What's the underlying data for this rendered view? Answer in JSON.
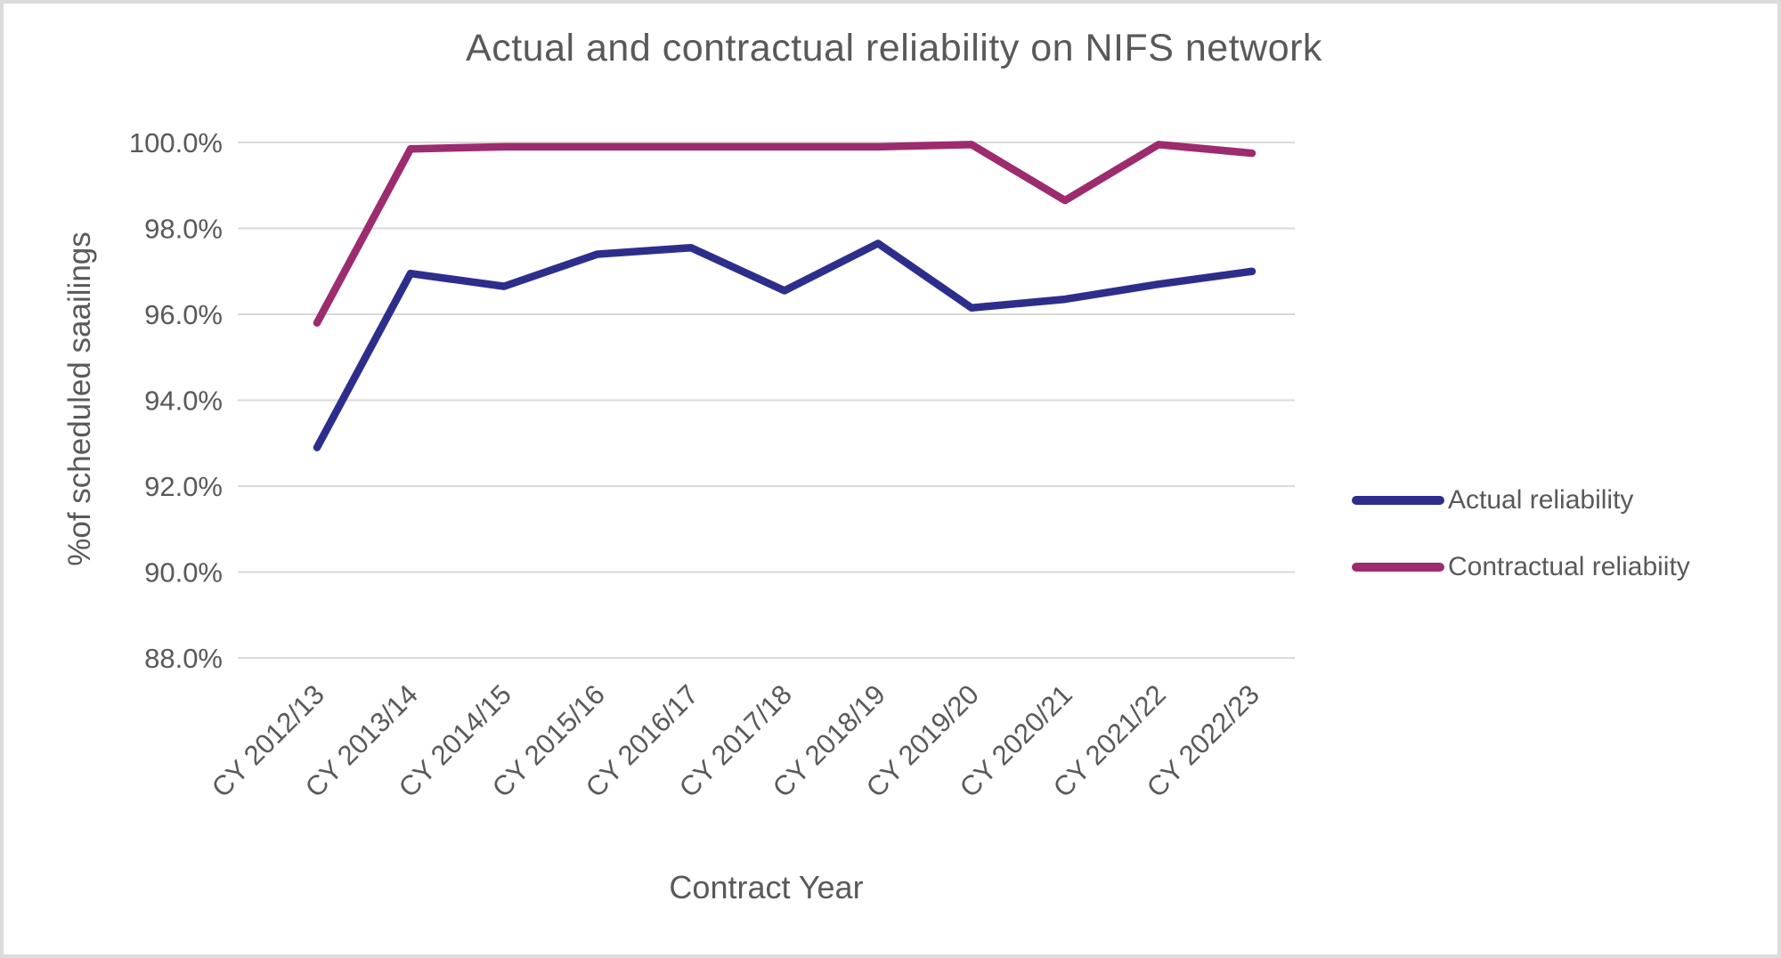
{
  "chart_data": {
    "type": "line",
    "title": "Actual and contractual reliability on NIFS network",
    "xlabel": "Contract Year",
    "ylabel": "%of scheduled saailings",
    "categories": [
      "CY 2012/13",
      "CY 2013/14",
      "CY 2014/15",
      "CY 2015/16",
      "CY 2016/17",
      "CY 2017/18",
      "CY 2018/19",
      "CY 2019/20",
      "CY 2020/21",
      "CY 2021/22",
      "CY 2022/23"
    ],
    "series": [
      {
        "name": "Actual reliability",
        "color": "#2d2e8c",
        "values": [
          92.9,
          96.95,
          96.65,
          97.4,
          97.55,
          96.55,
          97.65,
          96.15,
          96.35,
          96.7,
          97.0
        ]
      },
      {
        "name": "Contractual reliabiity",
        "color": "#9c2b6f",
        "values": [
          95.8,
          99.85,
          99.9,
          99.9,
          99.9,
          99.9,
          99.9,
          99.95,
          98.65,
          99.95,
          99.75
        ]
      }
    ],
    "y_axis": {
      "min": 88,
      "max": 100,
      "step": 2,
      "tick_labels": [
        "88.0%",
        "90.0%",
        "92.0%",
        "94.0%",
        "96.0%",
        "98.0%",
        "100.0%"
      ]
    },
    "legend": {
      "position": "right"
    },
    "grid": "horizontal",
    "colors": {
      "text": "#595959",
      "gridline": "#d9d9d9",
      "background": "#ffffff",
      "frame_border": "#dcdcdc"
    }
  }
}
